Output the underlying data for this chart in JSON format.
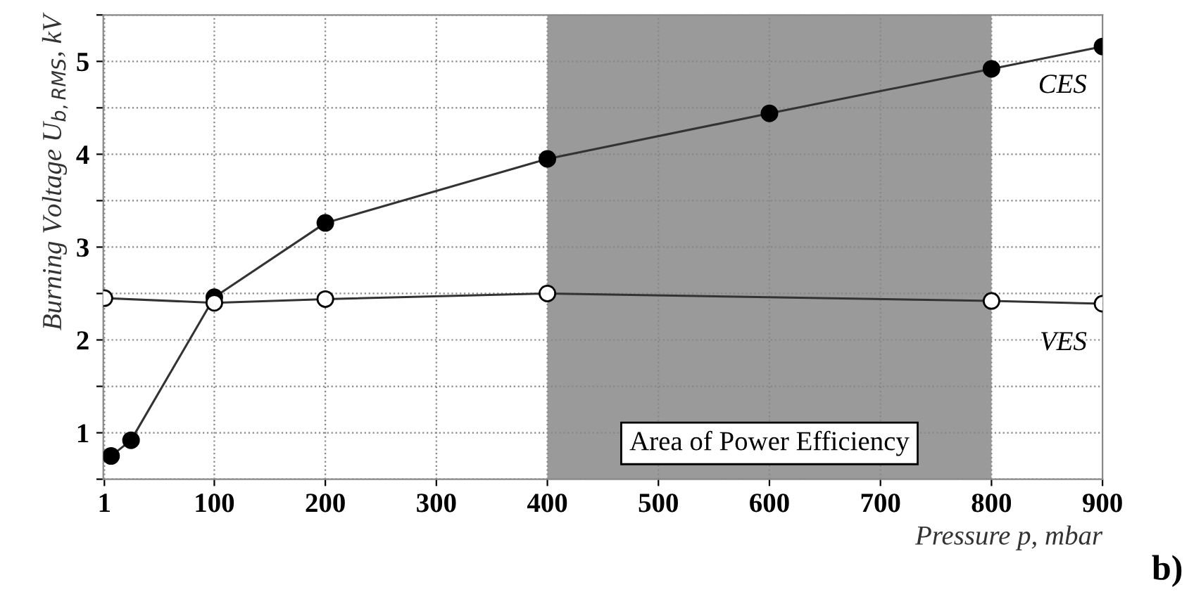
{
  "chart_data": {
    "type": "line",
    "xlabel": "Pressure p, mbar",
    "ylabel": "Burning Voltage U$_{b,RMS}$, kV",
    "series": [
      {
        "name": "CES",
        "color": "#000000",
        "x": [
          7,
          25,
          100,
          200,
          400,
          600,
          800,
          900
        ],
        "values": [
          0.75,
          0.92,
          2.46,
          3.26,
          3.95,
          4.44,
          4.92,
          5.16
        ]
      },
      {
        "name": "VES",
        "color": "#ffffff",
        "x": [
          1,
          100,
          200,
          400,
          800,
          900
        ],
        "values": [
          2.45,
          2.4,
          2.44,
          2.5,
          2.42,
          2.39
        ]
      }
    ],
    "xlim": [
      0,
      900
    ],
    "ylim": [
      0.5,
      5.5
    ],
    "xticks": [
      1,
      100,
      200,
      300,
      400,
      500,
      600,
      700,
      800,
      900
    ],
    "yticks": [
      {
        "value": 0.5,
        "label": null
      },
      1,
      {
        "value": 1.5,
        "label": null
      },
      2,
      {
        "value": 2.5,
        "label": null
      },
      3,
      {
        "value": 3.5,
        "label": null
      },
      4,
      {
        "value": 4.5,
        "label": null
      },
      5,
      {
        "value": 5.5,
        "label": null
      }
    ],
    "bands": [
      {
        "axis": "x",
        "from": 400,
        "to": 800,
        "label": "Area of Power Efficiency",
        "color": "#9a9a9a"
      }
    ],
    "annotations": [
      "b)"
    ],
    "grid": true,
    "legend": false,
    "marker": "circle",
    "line_style": "solid"
  }
}
